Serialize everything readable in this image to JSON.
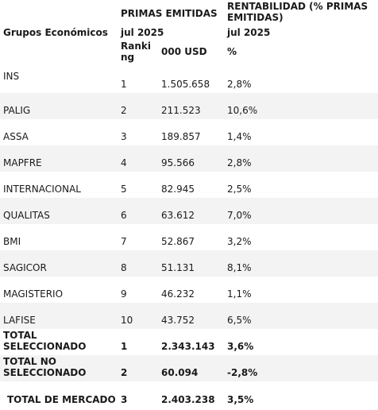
{
  "table": {
    "header": {
      "col0": "Grupos Económicos",
      "primas_group": "PRIMAS EMITIDAS",
      "primas_period": "jul 2025",
      "rentab_group_line1": "RENTABILIDAD (% PRIMAS",
      "rentab_group_line2": "EMITIDAS)",
      "rentab_period": "jul 2025",
      "ranking_line1": "Ranki",
      "ranking_line2": "ng",
      "amount_unit": "000 USD",
      "pct_unit": "%"
    },
    "rows": [
      {
        "group": "INS",
        "rank": "1",
        "amount": "1.505.658",
        "pct": "2,8%"
      },
      {
        "group": "PALIG",
        "rank": "2",
        "amount": "211.523",
        "pct": "10,6%"
      },
      {
        "group": "ASSA",
        "rank": "3",
        "amount": "189.857",
        "pct": "1,4%"
      },
      {
        "group": "MAPFRE",
        "rank": "4",
        "amount": "95.566",
        "pct": "2,8%"
      },
      {
        "group": "INTERNACIONAL",
        "rank": "5",
        "amount": "82.945",
        "pct": "2,5%"
      },
      {
        "group": "QUALITAS",
        "rank": "6",
        "amount": "63.612",
        "pct": "7,0%"
      },
      {
        "group": "BMI",
        "rank": "7",
        "amount": "52.867",
        "pct": "3,2%"
      },
      {
        "group": "SAGICOR",
        "rank": "8",
        "amount": "51.131",
        "pct": "8,1%"
      },
      {
        "group": "MAGISTERIO",
        "rank": "9",
        "amount": "46.232",
        "pct": "1,1%"
      },
      {
        "group": "LAFISE",
        "rank": "10",
        "amount": "43.752",
        "pct": "6,5%"
      }
    ],
    "totals": [
      {
        "line1": "TOTAL",
        "line2": "SELECCIONADO",
        "rank": "1",
        "amount": "2.343.143",
        "pct": "3,6%"
      },
      {
        "line1": "TOTAL NO",
        "line2": "SELECCIONADO",
        "rank": "2",
        "amount": "60.094",
        "pct": "-2,8%"
      },
      {
        "label": "TOTAL DE MERCADO",
        "rank": "3",
        "amount": "2.403.238",
        "pct": "3,5%"
      }
    ]
  }
}
